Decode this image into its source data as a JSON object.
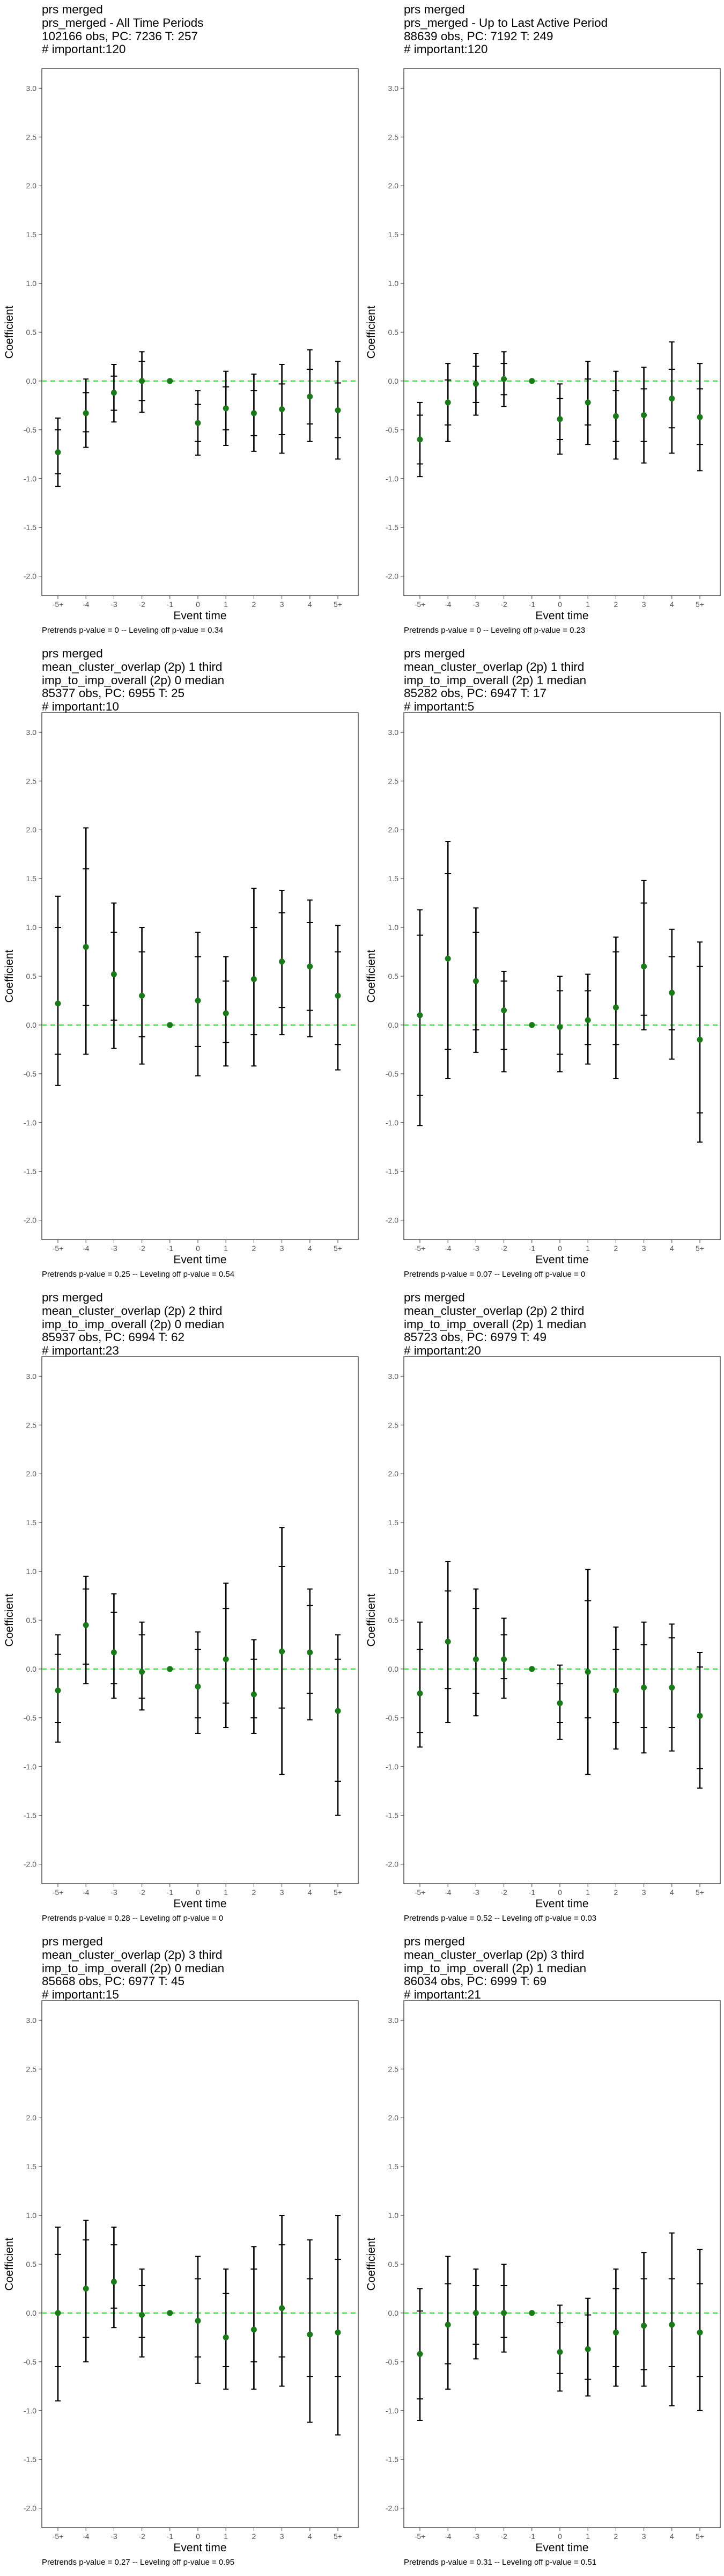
{
  "colors": {
    "point": "#1a7a1a",
    "zero_line": "#33dd33",
    "error_bar": "#000000",
    "frame": "#333333",
    "tick_text": "#555555"
  },
  "chart_data": [
    {
      "type": "scatter",
      "title_lines": [
        "prs merged",
        "prs_merged - All Time Periods",
        "102166 obs, PC: 7236 T: 257",
        "# important:120"
      ],
      "xlabel": "Event time",
      "ylabel": "Coefficient",
      "ylim": [
        -2.0,
        3.0
      ],
      "y_ticks": [
        -2.0,
        -1.5,
        -1.0,
        -0.5,
        0.0,
        0.5,
        1.0,
        1.5,
        2.0,
        2.5,
        3.0
      ],
      "x": [
        "-5+",
        "-4",
        "-3",
        "-2",
        "-1",
        "0",
        "1",
        "2",
        "3",
        "4",
        "5+"
      ],
      "y": [
        -0.73,
        -0.33,
        -0.12,
        0.0,
        0.0,
        -0.43,
        -0.28,
        -0.33,
        -0.29,
        -0.16,
        -0.3
      ],
      "ci_inner": [
        [
          -0.95,
          -0.5
        ],
        [
          -0.52,
          -0.12
        ],
        [
          -0.3,
          0.05
        ],
        [
          -0.2,
          0.2
        ],
        null,
        [
          -0.62,
          -0.24
        ],
        [
          -0.5,
          -0.06
        ],
        [
          -0.56,
          -0.1
        ],
        [
          -0.55,
          -0.03
        ],
        [
          -0.44,
          0.12
        ],
        [
          -0.58,
          -0.02
        ]
      ],
      "ci_outer": [
        [
          -1.08,
          -0.38
        ],
        [
          -0.68,
          0.02
        ],
        [
          -0.42,
          0.17
        ],
        [
          -0.32,
          0.3
        ],
        null,
        [
          -0.76,
          -0.1
        ],
        [
          -0.66,
          0.1
        ],
        [
          -0.72,
          0.07
        ],
        [
          -0.74,
          0.17
        ],
        [
          -0.62,
          0.32
        ],
        [
          -0.8,
          0.2
        ]
      ],
      "grid": false,
      "footnote": "Pretrends p-value = 0 -- Leveling off p-value = 0.34"
    },
    {
      "type": "scatter",
      "title_lines": [
        "prs merged",
        "prs_merged - Up to Last Active Period",
        "88639 obs, PC: 7192 T: 249",
        "# important:120"
      ],
      "xlabel": "Event time",
      "ylabel": "Coefficient",
      "ylim": [
        -2.0,
        3.0
      ],
      "y_ticks": [
        -2.0,
        -1.5,
        -1.0,
        -0.5,
        0.0,
        0.5,
        1.0,
        1.5,
        2.0,
        2.5,
        3.0
      ],
      "x": [
        "-5+",
        "-4",
        "-3",
        "-2",
        "-1",
        "0",
        "1",
        "2",
        "3",
        "4",
        "5+"
      ],
      "y": [
        -0.6,
        -0.22,
        -0.03,
        0.02,
        0.0,
        -0.39,
        -0.22,
        -0.36,
        -0.35,
        -0.18,
        -0.37
      ],
      "ci_inner": [
        [
          -0.85,
          -0.35
        ],
        [
          -0.45,
          0.01
        ],
        [
          -0.22,
          0.15
        ],
        [
          -0.14,
          0.18
        ],
        null,
        [
          -0.6,
          -0.18
        ],
        [
          -0.45,
          0.02
        ],
        [
          -0.62,
          -0.1
        ],
        [
          -0.62,
          -0.08
        ],
        [
          -0.48,
          0.12
        ],
        [
          -0.65,
          -0.08
        ]
      ],
      "ci_outer": [
        [
          -0.98,
          -0.22
        ],
        [
          -0.62,
          0.18
        ],
        [
          -0.35,
          0.28
        ],
        [
          -0.26,
          0.3
        ],
        null,
        [
          -0.75,
          -0.03
        ],
        [
          -0.65,
          0.2
        ],
        [
          -0.8,
          0.1
        ],
        [
          -0.84,
          0.14
        ],
        [
          -0.74,
          0.4
        ],
        [
          -0.92,
          0.18
        ]
      ],
      "grid": false,
      "footnote": "Pretrends p-value = 0 -- Leveling off p-value = 0.23"
    },
    {
      "type": "scatter",
      "title_lines": [
        "prs merged",
        "mean_cluster_overlap (2p) 1 third",
        "imp_to_imp_overall (2p) 0 median",
        "85377 obs, PC: 6955 T: 25",
        "# important:10"
      ],
      "xlabel": "Event time",
      "ylabel": "Coefficient",
      "ylim": [
        -2.0,
        3.0
      ],
      "y_ticks": [
        -2.0,
        -1.5,
        -1.0,
        -0.5,
        0.0,
        0.5,
        1.0,
        1.5,
        2.0,
        2.5,
        3.0
      ],
      "x": [
        "-5+",
        "-4",
        "-3",
        "-2",
        "-1",
        "0",
        "1",
        "2",
        "3",
        "4",
        "5+"
      ],
      "y": [
        0.22,
        0.8,
        0.52,
        0.3,
        0.0,
        0.25,
        0.12,
        0.47,
        0.65,
        0.6,
        0.3
      ],
      "ci_inner": [
        [
          -0.3,
          1.0
        ],
        [
          0.2,
          1.6
        ],
        [
          0.05,
          0.95
        ],
        [
          -0.12,
          0.75
        ],
        null,
        [
          -0.22,
          0.7
        ],
        [
          -0.18,
          0.45
        ],
        [
          -0.1,
          1.0
        ],
        [
          0.18,
          1.15
        ],
        [
          0.15,
          1.05
        ],
        [
          -0.2,
          0.75
        ]
      ],
      "ci_outer": [
        [
          -0.62,
          1.32
        ],
        [
          -0.3,
          2.02
        ],
        [
          -0.24,
          1.25
        ],
        [
          -0.4,
          1.0
        ],
        null,
        [
          -0.52,
          0.95
        ],
        [
          -0.42,
          0.7
        ],
        [
          -0.42,
          1.4
        ],
        [
          -0.1,
          1.38
        ],
        [
          -0.12,
          1.28
        ],
        [
          -0.46,
          1.02
        ]
      ],
      "grid": false,
      "footnote": "Pretrends p-value = 0.25 -- Leveling off p-value = 0.54"
    },
    {
      "type": "scatter",
      "title_lines": [
        "prs merged",
        "mean_cluster_overlap (2p) 1 third",
        "imp_to_imp_overall (2p) 1 median",
        "85282 obs, PC: 6947 T: 17",
        "# important:5"
      ],
      "xlabel": "Event time",
      "ylabel": "Coefficient",
      "ylim": [
        -2.0,
        3.0
      ],
      "y_ticks": [
        -2.0,
        -1.5,
        -1.0,
        -0.5,
        0.0,
        0.5,
        1.0,
        1.5,
        2.0,
        2.5,
        3.0
      ],
      "x": [
        "-5+",
        "-4",
        "-3",
        "-2",
        "-1",
        "0",
        "1",
        "2",
        "3",
        "4",
        "5+"
      ],
      "y": [
        0.1,
        0.68,
        0.45,
        0.15,
        0.0,
        -0.02,
        0.05,
        0.18,
        0.6,
        0.33,
        -0.15
      ],
      "ci_inner": [
        [
          -0.72,
          0.92
        ],
        [
          -0.25,
          1.55
        ],
        [
          -0.05,
          0.95
        ],
        [
          -0.25,
          0.45
        ],
        null,
        [
          -0.3,
          0.35
        ],
        [
          -0.2,
          0.35
        ],
        [
          -0.2,
          0.75
        ],
        [
          0.1,
          1.25
        ],
        [
          -0.05,
          0.7
        ],
        [
          -0.9,
          0.6
        ]
      ],
      "ci_outer": [
        [
          -1.03,
          1.18
        ],
        [
          -0.55,
          1.88
        ],
        [
          -0.28,
          1.2
        ],
        [
          -0.48,
          0.55
        ],
        null,
        [
          -0.48,
          0.5
        ],
        [
          -0.4,
          0.52
        ],
        [
          -0.55,
          0.9
        ],
        [
          -0.05,
          1.48
        ],
        [
          -0.35,
          0.98
        ],
        [
          -1.2,
          0.85
        ]
      ],
      "grid": false,
      "footnote": "Pretrends p-value = 0.07 -- Leveling off p-value = 0"
    },
    {
      "type": "scatter",
      "title_lines": [
        "prs merged",
        "mean_cluster_overlap (2p) 2 third",
        "imp_to_imp_overall (2p) 0 median",
        "85937 obs, PC: 6994 T: 62",
        "# important:23"
      ],
      "xlabel": "Event time",
      "ylabel": "Coefficient",
      "ylim": [
        -2.0,
        3.0
      ],
      "y_ticks": [
        -2.0,
        -1.5,
        -1.0,
        -0.5,
        0.0,
        0.5,
        1.0,
        1.5,
        2.0,
        2.5,
        3.0
      ],
      "x": [
        "-5+",
        "-4",
        "-3",
        "-2",
        "-1",
        "0",
        "1",
        "2",
        "3",
        "4",
        "5+"
      ],
      "y": [
        -0.22,
        0.45,
        0.17,
        -0.03,
        0.0,
        -0.18,
        0.1,
        -0.26,
        0.18,
        0.17,
        -0.43
      ],
      "ci_inner": [
        [
          -0.55,
          0.15
        ],
        [
          0.05,
          0.82
        ],
        [
          -0.15,
          0.58
        ],
        [
          -0.3,
          0.35
        ],
        null,
        [
          -0.5,
          0.2
        ],
        [
          -0.35,
          0.62
        ],
        [
          -0.5,
          0.1
        ],
        [
          -0.4,
          1.05
        ],
        [
          -0.25,
          0.65
        ],
        [
          -1.15,
          0.1
        ]
      ],
      "ci_outer": [
        [
          -0.75,
          0.35
        ],
        [
          -0.15,
          0.95
        ],
        [
          -0.3,
          0.77
        ],
        [
          -0.42,
          0.48
        ],
        null,
        [
          -0.66,
          0.38
        ],
        [
          -0.6,
          0.88
        ],
        [
          -0.66,
          0.3
        ],
        [
          -1.08,
          1.45
        ],
        [
          -0.52,
          0.82
        ],
        [
          -1.5,
          0.35
        ]
      ],
      "grid": false,
      "footnote": "Pretrends p-value = 0.28 -- Leveling off p-value = 0"
    },
    {
      "type": "scatter",
      "title_lines": [
        "prs merged",
        "mean_cluster_overlap (2p) 2 third",
        "imp_to_imp_overall (2p) 1 median",
        "85723 obs, PC: 6979 T: 49",
        "# important:20"
      ],
      "xlabel": "Event time",
      "ylabel": "Coefficient",
      "ylim": [
        -2.0,
        3.0
      ],
      "y_ticks": [
        -2.0,
        -1.5,
        -1.0,
        -0.5,
        0.0,
        0.5,
        1.0,
        1.5,
        2.0,
        2.5,
        3.0
      ],
      "x": [
        "-5+",
        "-4",
        "-3",
        "-2",
        "-1",
        "0",
        "1",
        "2",
        "3",
        "4",
        "5+"
      ],
      "y": [
        -0.25,
        0.28,
        0.1,
        0.1,
        0.0,
        -0.35,
        -0.03,
        -0.22,
        -0.19,
        -0.19,
        -0.48
      ],
      "ci_inner": [
        [
          -0.65,
          0.2
        ],
        [
          -0.2,
          0.8
        ],
        [
          -0.25,
          0.62
        ],
        [
          -0.1,
          0.35
        ],
        null,
        [
          -0.55,
          -0.15
        ],
        [
          -0.5,
          0.7
        ],
        [
          -0.55,
          0.2
        ],
        [
          -0.6,
          0.25
        ],
        [
          -0.6,
          0.32
        ],
        [
          -1.02,
          0.02
        ]
      ],
      "ci_outer": [
        [
          -0.8,
          0.48
        ],
        [
          -0.55,
          1.1
        ],
        [
          -0.48,
          0.82
        ],
        [
          -0.3,
          0.52
        ],
        null,
        [
          -0.72,
          0.04
        ],
        [
          -1.08,
          1.02
        ],
        [
          -0.82,
          0.43
        ],
        [
          -0.86,
          0.48
        ],
        [
          -0.84,
          0.46
        ],
        [
          -1.22,
          0.17
        ]
      ],
      "grid": false,
      "footnote": "Pretrends p-value = 0.52 -- Leveling off p-value = 0.03"
    },
    {
      "type": "scatter",
      "title_lines": [
        "prs merged",
        "mean_cluster_overlap (2p) 3 third",
        "imp_to_imp_overall (2p) 0 median",
        "85668 obs, PC: 6977 T: 45",
        "# important:15"
      ],
      "xlabel": "Event time",
      "ylabel": "Coefficient",
      "ylim": [
        -2.0,
        3.0
      ],
      "y_ticks": [
        -2.0,
        -1.5,
        -1.0,
        -0.5,
        0.0,
        0.5,
        1.0,
        1.5,
        2.0,
        2.5,
        3.0
      ],
      "x": [
        "-5+",
        "-4",
        "-3",
        "-2",
        "-1",
        "0",
        "1",
        "2",
        "3",
        "4",
        "5+"
      ],
      "y": [
        0.0,
        0.25,
        0.32,
        -0.02,
        0.0,
        -0.08,
        -0.25,
        -0.17,
        0.05,
        -0.22,
        -0.2
      ],
      "ci_inner": [
        [
          -0.55,
          0.6
        ],
        [
          -0.25,
          0.75
        ],
        [
          0.05,
          0.7
        ],
        [
          -0.25,
          0.28
        ],
        null,
        [
          -0.45,
          0.35
        ],
        [
          -0.55,
          0.2
        ],
        [
          -0.5,
          0.45
        ],
        [
          -0.45,
          0.7
        ],
        [
          -0.65,
          0.35
        ],
        [
          -0.65,
          0.55
        ]
      ],
      "ci_outer": [
        [
          -0.9,
          0.88
        ],
        [
          -0.5,
          0.95
        ],
        [
          -0.15,
          0.88
        ],
        [
          -0.45,
          0.45
        ],
        null,
        [
          -0.72,
          0.58
        ],
        [
          -0.78,
          0.45
        ],
        [
          -0.78,
          0.68
        ],
        [
          -0.75,
          1.0
        ],
        [
          -1.12,
          0.75
        ],
        [
          -1.25,
          1.0
        ]
      ],
      "grid": false,
      "footnote": "Pretrends p-value = 0.27 -- Leveling off p-value = 0.95"
    },
    {
      "type": "scatter",
      "title_lines": [
        "prs merged",
        "mean_cluster_overlap (2p) 3 third",
        "imp_to_imp_overall (2p) 1 median",
        "86034 obs, PC: 6999 T: 69",
        "# important:21"
      ],
      "xlabel": "Event time",
      "ylabel": "Coefficient",
      "ylim": [
        -2.0,
        3.0
      ],
      "y_ticks": [
        -2.0,
        -1.5,
        -1.0,
        -0.5,
        0.0,
        0.5,
        1.0,
        1.5,
        2.0,
        2.5,
        3.0
      ],
      "x": [
        "-5+",
        "-4",
        "-3",
        "-2",
        "-1",
        "0",
        "1",
        "2",
        "3",
        "4",
        "5+"
      ],
      "y": [
        -0.42,
        -0.12,
        0.0,
        0.0,
        0.0,
        -0.4,
        -0.37,
        -0.2,
        -0.13,
        -0.12,
        -0.2
      ],
      "ci_inner": [
        [
          -0.88,
          0.02
        ],
        [
          -0.52,
          0.3
        ],
        [
          -0.32,
          0.28
        ],
        [
          -0.25,
          0.28
        ],
        null,
        [
          -0.62,
          -0.1
        ],
        [
          -0.68,
          -0.02
        ],
        [
          -0.55,
          0.25
        ],
        [
          -0.58,
          0.35
        ],
        [
          -0.55,
          0.35
        ],
        [
          -0.65,
          0.3
        ]
      ],
      "ci_outer": [
        [
          -1.1,
          0.25
        ],
        [
          -0.78,
          0.58
        ],
        [
          -0.47,
          0.45
        ],
        [
          -0.4,
          0.5
        ],
        null,
        [
          -0.8,
          0.08
        ],
        [
          -0.85,
          0.15
        ],
        [
          -0.75,
          0.45
        ],
        [
          -0.75,
          0.62
        ],
        [
          -0.95,
          0.82
        ],
        [
          -1.0,
          0.65
        ]
      ],
      "grid": false,
      "footnote": "Pretrends p-value = 0.31 -- Leveling off p-value = 0.51"
    }
  ]
}
